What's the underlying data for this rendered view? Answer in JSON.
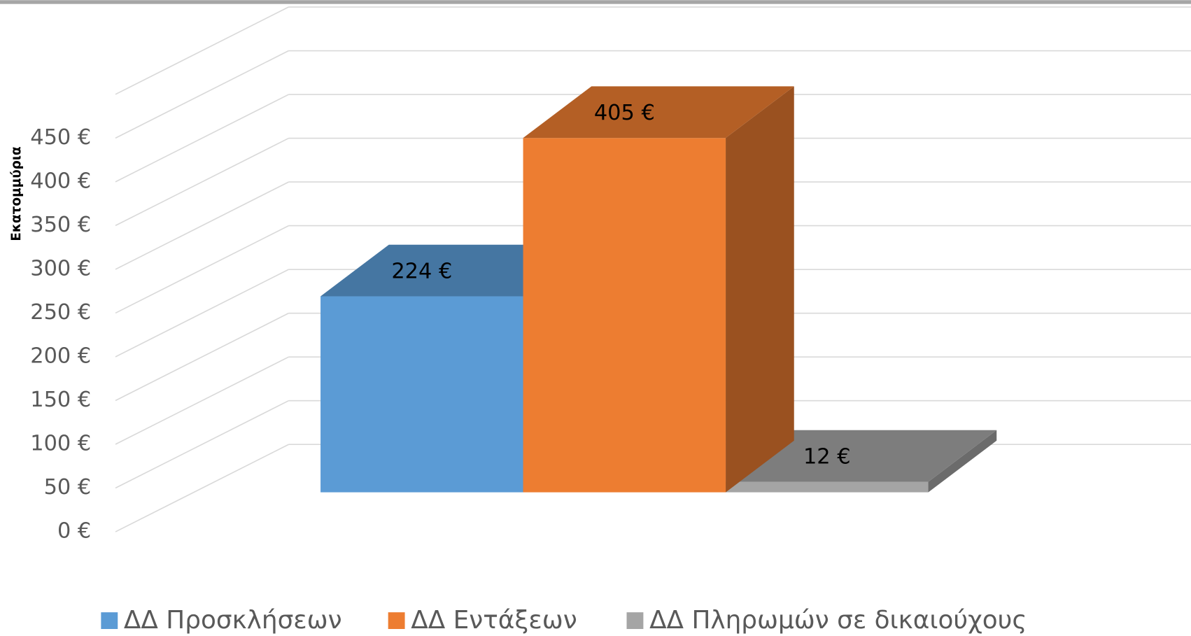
{
  "chart_data": {
    "type": "bar3d",
    "y_label": "Εκατομμύρια",
    "categories": [
      null
    ],
    "series": [
      {
        "name": "ΔΔ Προσκλήσεων",
        "color": "#5b9bd5",
        "values": [
          224
        ],
        "value_labels": [
          "224 €"
        ]
      },
      {
        "name": "ΔΔ Εντάξεων",
        "color": "#ed7d31",
        "values": [
          405
        ],
        "value_labels": [
          "405 €"
        ]
      },
      {
        "name": "ΔΔ Πληρωμών σε δικαιούχους",
        "color": "#a5a5a5",
        "values": [
          12
        ],
        "value_labels": [
          "12 €"
        ]
      }
    ],
    "ylim": [
      0,
      500
    ],
    "yticks": [
      {
        "value": 0,
        "label": "0 €"
      },
      {
        "value": 50,
        "label": "50 €"
      },
      {
        "value": 100,
        "label": "100 €"
      },
      {
        "value": 150,
        "label": "150 €"
      },
      {
        "value": 200,
        "label": "200 €"
      },
      {
        "value": 250,
        "label": "250 €"
      },
      {
        "value": 300,
        "label": "300 €"
      },
      {
        "value": 350,
        "label": "350 €"
      },
      {
        "value": 400,
        "label": "400 €"
      },
      {
        "value": 450,
        "label": "450 €"
      }
    ],
    "grid": true,
    "legend": "bottom"
  }
}
